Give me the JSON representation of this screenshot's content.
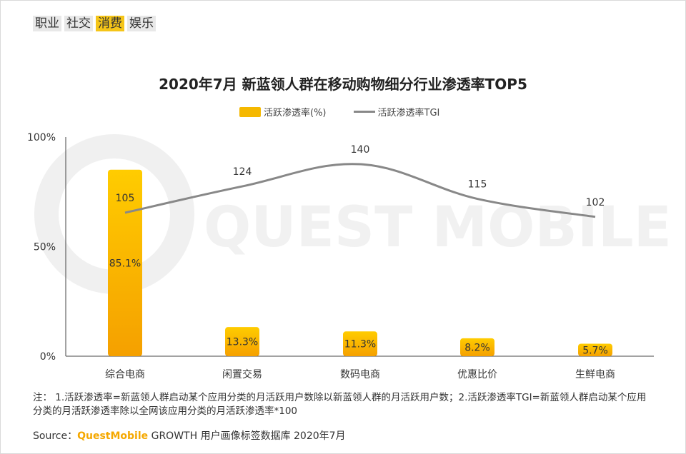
{
  "tabs": [
    {
      "label": "职业",
      "active": false
    },
    {
      "label": "社交",
      "active": false
    },
    {
      "label": "消费",
      "active": true
    },
    {
      "label": "娱乐",
      "active": false
    }
  ],
  "watermark": "QUEST MOBILE",
  "chart_data": {
    "type": "bar",
    "title": "2020年7月 新蓝领人群在移动购物细分行业渗透率TOP5",
    "categories": [
      "综合电商",
      "闲置交易",
      "数码电商",
      "优惠比价",
      "生鲜电商"
    ],
    "series": [
      {
        "name": "活跃渗透率(%)",
        "type": "bar",
        "values": [
          85.1,
          13.3,
          11.3,
          8.2,
          5.7
        ],
        "labels": [
          "85.1%",
          "13.3%",
          "11.3%",
          "8.2%",
          "5.7%"
        ],
        "color": "#f5b800"
      },
      {
        "name": "活跃渗透率TGI",
        "type": "line",
        "values": [
          105,
          124,
          140,
          115,
          102
        ],
        "labels": [
          "105",
          "124",
          "140",
          "115",
          "102"
        ],
        "color": "#888888"
      }
    ],
    "y_ticks": [
      "100%",
      "50%",
      "0%"
    ],
    "ylim": [
      0,
      100
    ],
    "legend_placement": "top-center",
    "grid": false
  },
  "note": "注： 1.活跃渗透率=新蓝领人群启动某个应用分类的月活跃用户数除以新蓝领人群的月活跃用户数；2.活跃渗透率TGI=新蓝领人群启动某个应用分类的月活跃渗透率除以全网该应用分类的月活跃渗透率*100",
  "source": {
    "prefix": "Source：",
    "brand": "QuestMobile",
    "suffix": " GROWTH 用户画像标签数据库 2020年7月"
  }
}
